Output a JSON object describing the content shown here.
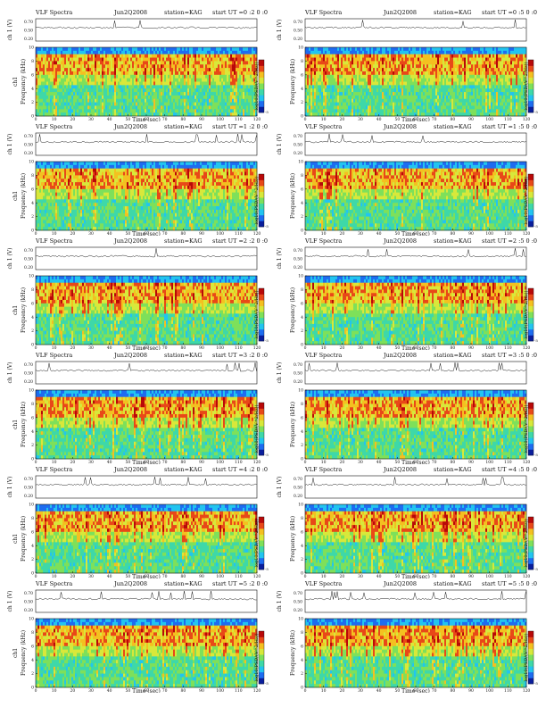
{
  "chart_data": [
    {
      "type": "heatmap",
      "title": "VLF Spectra",
      "date": "Jun2Q2008",
      "station": "station=KAG",
      "start": "start  UT =0 :2 0 :0",
      "ch_label": "ch 1 (V)",
      "ch_ticks": [
        "0.70",
        "0.50",
        "0.20"
      ],
      "freq_label": "Frequency (kHz)",
      "ch_side": "ch1",
      "freq_ticks": [
        "0",
        "2",
        "4",
        "6",
        "8",
        "10"
      ],
      "xlabel": "Time (sec)",
      "x_ticks": [
        "0",
        "10",
        "20",
        "30",
        "40",
        "50",
        "60",
        "70",
        "80",
        "90",
        "100",
        "110",
        "120"
      ],
      "xlim": [
        0,
        120
      ],
      "ylim": [
        0,
        10
      ],
      "cbar_label": "log10(PSD/(V^2/Hz))",
      "cbar_min": "-5"
    },
    {
      "type": "heatmap",
      "title": "VLF Spectra",
      "date": "Jun2Q2008",
      "station": "station=KAG",
      "start": "start  UT =0 :5 0 :0",
      "ch_label": "ch 1 (V)",
      "ch_ticks": [
        "0.70",
        "0.50",
        "0.20"
      ],
      "freq_label": "Frequency (kHz)",
      "ch_side": "",
      "freq_ticks": [
        "0",
        "2",
        "4",
        "6",
        "8",
        "10"
      ],
      "xlabel": "Time (sec)",
      "x_ticks": [
        "0",
        "10",
        "20",
        "30",
        "40",
        "50",
        "60",
        "70",
        "80",
        "90",
        "100",
        "110",
        "120"
      ],
      "xlim": [
        0,
        120
      ],
      "ylim": [
        0,
        10
      ],
      "cbar_label": "log10(PSD/(V^2/Hz))",
      "cbar_min": "-5"
    },
    {
      "type": "heatmap",
      "title": "VLF Spectra",
      "date": "Jun2Q2008",
      "station": "station=KAG",
      "start": "start  UT =1 :2 0 :0",
      "ch_label": "ch 1 (V)",
      "ch_ticks": [
        "0.70",
        "0.50",
        "0.20"
      ],
      "freq_label": "Frequency (kHz)",
      "ch_side": "ch1",
      "freq_ticks": [
        "0",
        "2",
        "4",
        "6",
        "8",
        "10"
      ],
      "xlabel": "Time (sec)",
      "x_ticks": [
        "0",
        "10",
        "20",
        "30",
        "40",
        "50",
        "60",
        "70",
        "80",
        "90",
        "100",
        "110",
        "120"
      ],
      "xlim": [
        0,
        120
      ],
      "ylim": [
        0,
        10
      ],
      "cbar_label": "log10(PSD/(V^2/Hz))",
      "cbar_min": "-5"
    },
    {
      "type": "heatmap",
      "title": "VLF Spectra",
      "date": "Jun2Q2008",
      "station": "station=KAG",
      "start": "start  UT =1 :5 0 :0",
      "ch_label": "ch 1 (V)",
      "ch_ticks": [
        "0.70",
        "0.50",
        "0.20"
      ],
      "freq_label": "Frequency (kHz)",
      "ch_side": "",
      "freq_ticks": [
        "0",
        "2",
        "4",
        "6",
        "8",
        "10"
      ],
      "xlabel": "Time (sec)",
      "x_ticks": [
        "0",
        "10",
        "20",
        "30",
        "40",
        "50",
        "60",
        "70",
        "80",
        "90",
        "100",
        "110",
        "120"
      ],
      "xlim": [
        0,
        120
      ],
      "ylim": [
        0,
        10
      ],
      "cbar_label": "log10(PSD/(V^2/Hz))",
      "cbar_min": "-5"
    },
    {
      "type": "heatmap",
      "title": "VLF Spectra",
      "date": "Jun2Q2008",
      "station": "station=KAG",
      "start": "start  UT =2 :2 0 :0",
      "ch_label": "ch 1 (V)",
      "ch_ticks": [
        "0.70",
        "0.50",
        "0.20"
      ],
      "freq_label": "Frequency (kHz)",
      "ch_side": "ch1",
      "freq_ticks": [
        "0",
        "2",
        "4",
        "6",
        "8",
        "10"
      ],
      "xlabel": "Time (sec)",
      "x_ticks": [
        "0",
        "10",
        "20",
        "30",
        "40",
        "50",
        "60",
        "70",
        "80",
        "90",
        "100",
        "110",
        "120"
      ],
      "xlim": [
        0,
        120
      ],
      "ylim": [
        0,
        10
      ],
      "cbar_label": "log10(PSD/(V^2/Hz))",
      "cbar_min": "-5"
    },
    {
      "type": "heatmap",
      "title": "VLF Spectra",
      "date": "Jun2Q2008",
      "station": "station=KAG",
      "start": "start  UT =2 :5 0 :0",
      "ch_label": "ch 1 (V)",
      "ch_ticks": [
        "0.70",
        "0.50",
        "0.20"
      ],
      "freq_label": "Frequency (kHz)",
      "ch_side": "",
      "freq_ticks": [
        "0",
        "2",
        "4",
        "6",
        "8",
        "10"
      ],
      "xlabel": "Time (sec)",
      "x_ticks": [
        "0",
        "10",
        "20",
        "30",
        "40",
        "50",
        "60",
        "70",
        "80",
        "90",
        "100",
        "110",
        "120"
      ],
      "xlim": [
        0,
        120
      ],
      "ylim": [
        0,
        10
      ],
      "cbar_label": "log10(PSD/(V^2/Hz))",
      "cbar_min": "-5"
    },
    {
      "type": "heatmap",
      "title": "VLF Spectra",
      "date": "Jun2Q2008",
      "station": "station=KAG",
      "start": "start  UT =3 :2 0 :0",
      "ch_label": "ch 1 (V)",
      "ch_ticks": [
        "0.70",
        "0.50",
        "0.20"
      ],
      "freq_label": "Frequency (kHz)",
      "ch_side": "ch1",
      "freq_ticks": [
        "0",
        "2",
        "4",
        "6",
        "8",
        "10"
      ],
      "xlabel": "Time (sec)",
      "x_ticks": [
        "0",
        "10",
        "20",
        "30",
        "40",
        "50",
        "60",
        "70",
        "80",
        "90",
        "100",
        "110",
        "120"
      ],
      "xlim": [
        0,
        120
      ],
      "ylim": [
        0,
        10
      ],
      "cbar_label": "log10(PSD/(V^2/Hz))",
      "cbar_min": "-5"
    },
    {
      "type": "heatmap",
      "title": "VLF Spectra",
      "date": "Jun2Q2008",
      "station": "station=KAG",
      "start": "start  UT =3 :5 0 :0",
      "ch_label": "ch 1 (V)",
      "ch_ticks": [
        "0.70",
        "0.50",
        "0.20"
      ],
      "freq_label": "Frequency (kHz)",
      "ch_side": "",
      "freq_ticks": [
        "0",
        "2",
        "4",
        "6",
        "8",
        "10"
      ],
      "xlabel": "Time (sec)",
      "x_ticks": [
        "0",
        "10",
        "20",
        "30",
        "40",
        "50",
        "60",
        "70",
        "80",
        "90",
        "100",
        "110",
        "120"
      ],
      "xlim": [
        0,
        120
      ],
      "ylim": [
        0,
        10
      ],
      "cbar_label": "log10(PSD/(V^2/Hz))",
      "cbar_min": "-5"
    },
    {
      "type": "heatmap",
      "title": "VLF Spectra",
      "date": "Jun2Q2008",
      "station": "station=KAG",
      "start": "start  UT =4 :2 0 :0",
      "ch_label": "ch 1 (V)",
      "ch_ticks": [
        "0.70",
        "0.50",
        "0.20"
      ],
      "freq_label": "Frequency (kHz)",
      "ch_side": "ch1",
      "freq_ticks": [
        "0",
        "2",
        "4",
        "6",
        "8",
        "10"
      ],
      "xlabel": "Time (sec)",
      "x_ticks": [
        "0",
        "10",
        "20",
        "30",
        "40",
        "50",
        "60",
        "70",
        "80",
        "90",
        "100",
        "110",
        "120"
      ],
      "xlim": [
        0,
        120
      ],
      "ylim": [
        0,
        10
      ],
      "cbar_label": "log10(PSD/(V^2/Hz))",
      "cbar_min": "-5"
    },
    {
      "type": "heatmap",
      "title": "VLF Spectra",
      "date": "Jun2Q2008",
      "station": "station=KAG",
      "start": "start  UT =4 :5 0 :0",
      "ch_label": "ch 1 (V)",
      "ch_ticks": [
        "0.70",
        "0.50",
        "0.20"
      ],
      "freq_label": "Frequency (kHz)",
      "ch_side": "",
      "freq_ticks": [
        "0",
        "2",
        "4",
        "6",
        "8",
        "10"
      ],
      "xlabel": "Time (sec)",
      "x_ticks": [
        "0",
        "10",
        "20",
        "30",
        "40",
        "50",
        "60",
        "70",
        "80",
        "90",
        "100",
        "110",
        "120"
      ],
      "xlim": [
        0,
        120
      ],
      "ylim": [
        0,
        10
      ],
      "cbar_label": "log10(PSD/(V^2/Hz))",
      "cbar_min": "-5"
    },
    {
      "type": "heatmap",
      "title": "VLF Spectra",
      "date": "Jun2Q2008",
      "station": "station=KAG",
      "start": "start  UT =5 :2 0 :0",
      "ch_label": "ch 1 (V)",
      "ch_ticks": [
        "0.70",
        "0.50",
        "0.20"
      ],
      "freq_label": "Frequency (kHz)",
      "ch_side": "ch1",
      "freq_ticks": [
        "0",
        "2",
        "4",
        "6",
        "8",
        "10"
      ],
      "xlabel": "Time (sec)",
      "x_ticks": [
        "0",
        "10",
        "20",
        "30",
        "40",
        "50",
        "60",
        "70",
        "80",
        "90",
        "100",
        "110",
        "120"
      ],
      "xlim": [
        0,
        120
      ],
      "ylim": [
        0,
        10
      ],
      "cbar_label": "log10(PSD/(V^2/Hz))",
      "cbar_min": "-5"
    },
    {
      "type": "heatmap",
      "title": "VLF Spectra",
      "date": "Jun2Q2008",
      "station": "station=KAG",
      "start": "start  UT =5 :5 0 :0",
      "ch_label": "ch 1 (V)",
      "ch_ticks": [
        "0.70",
        "0.50",
        "0.20"
      ],
      "freq_label": "Frequency (kHz)",
      "ch_side": "",
      "freq_ticks": [
        "0",
        "2",
        "4",
        "6",
        "8",
        "10"
      ],
      "xlabel": "Time (sec)",
      "x_ticks": [
        "0",
        "10",
        "20",
        "30",
        "40",
        "50",
        "60",
        "70",
        "80",
        "90",
        "100",
        "110",
        "120"
      ],
      "xlim": [
        0,
        120
      ],
      "ylim": [
        0,
        10
      ],
      "cbar_label": "log10(PSD/(V^2/Hz))",
      "cbar_min": "-5"
    }
  ],
  "colors": {
    "colormap": [
      "#0a1e9c",
      "#1e6cf0",
      "#22c4f0",
      "#3ed8a8",
      "#7ee05a",
      "#d8e83a",
      "#f4c020",
      "#e84818",
      "#b80808"
    ],
    "axis": "#111111"
  }
}
